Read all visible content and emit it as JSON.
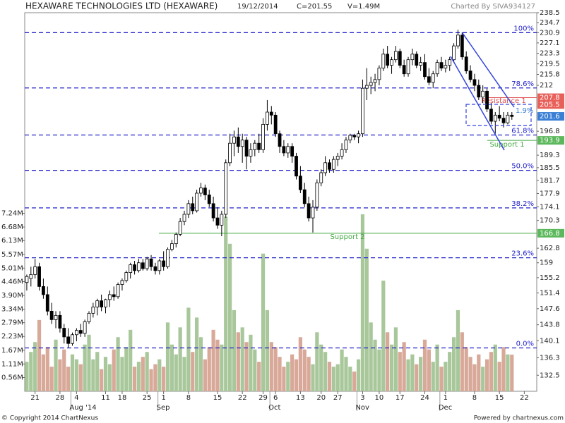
{
  "chart_data": {
    "type": "candlestick",
    "title": "HEXAWARE TECHNOLOGIES LTD (HEXAWARE)",
    "date": "19/12/2014",
    "close_label": "C=201.55",
    "volume_label": "V=1.49M",
    "credit": "Charted By SIVA934127",
    "open": [
      154,
      155,
      156,
      158,
      153,
      151,
      147,
      145,
      146,
      143,
      141,
      139.5,
      141.5,
      142.5,
      141.8,
      144.5,
      146.5,
      148,
      149.5,
      148,
      149.8,
      151,
      150.5,
      153.5,
      154.5,
      156.5,
      158.5,
      157,
      159,
      157.5,
      160,
      158,
      157,
      159.5,
      158,
      162.5,
      164,
      166.5,
      170,
      172,
      175,
      173,
      178,
      179.5,
      177.5,
      175,
      171,
      169,
      172,
      187,
      193,
      195,
      192,
      194,
      189,
      191,
      193,
      191,
      199,
      203,
      202,
      196,
      192,
      190,
      192,
      189,
      183,
      179,
      175,
      171,
      174,
      181,
      184,
      187,
      185,
      188,
      189,
      191,
      194,
      195.5,
      195,
      196,
      211,
      212,
      213,
      214,
      218,
      223,
      219,
      221,
      224,
      219,
      216,
      221,
      223,
      219,
      220,
      215,
      213,
      216,
      220,
      218,
      219,
      221,
      226,
      230,
      222,
      217,
      214,
      212,
      208,
      210,
      204,
      200,
      202,
      201,
      199.5,
      202
    ],
    "high": [
      156,
      158,
      160,
      159,
      155,
      153,
      149,
      147,
      147,
      144,
      143,
      142,
      143,
      144,
      145,
      147,
      149,
      150,
      151,
      150,
      152,
      153,
      154,
      155,
      157,
      159,
      159.5,
      160,
      160,
      160.5,
      161,
      159,
      160,
      162,
      163,
      165,
      167,
      171,
      173,
      176,
      177,
      179,
      181,
      180.5,
      179,
      177,
      174,
      173,
      188,
      196,
      197,
      198,
      196,
      195,
      193,
      194,
      196,
      201,
      207,
      205,
      203,
      197,
      194,
      193,
      193,
      190,
      186,
      181,
      177,
      176,
      182,
      185,
      189,
      188,
      189,
      190,
      193,
      195,
      196,
      196,
      197,
      214,
      218,
      215,
      216,
      219,
      225,
      226,
      222,
      226,
      225,
      221,
      222,
      225,
      224,
      222,
      223,
      218,
      217,
      221,
      222,
      221,
      222,
      227,
      232,
      231,
      224,
      219,
      216,
      214,
      212,
      211,
      206,
      203,
      205,
      203,
      203,
      203
    ],
    "low": [
      152,
      153,
      155,
      152,
      150,
      146,
      144,
      143,
      142,
      139.5,
      138.5,
      139,
      140,
      141,
      141,
      144,
      145.5,
      146,
      147,
      146.5,
      148,
      149.5,
      150,
      152,
      154,
      155,
      156,
      156.5,
      157,
      157,
      157,
      156,
      156,
      157,
      157.5,
      162,
      163,
      166,
      169,
      171,
      172,
      172.5,
      177,
      176,
      174,
      170,
      168,
      166,
      171,
      186,
      189,
      190,
      187,
      185,
      187,
      189,
      190,
      190,
      197,
      199,
      195,
      190,
      189,
      188.5,
      187,
      182,
      178,
      174,
      170,
      167,
      173,
      180,
      183,
      184,
      184,
      186,
      188,
      190,
      193,
      194,
      193,
      195,
      207,
      209,
      210,
      212,
      217,
      218,
      216,
      220,
      218,
      215,
      215,
      219,
      218,
      217,
      214,
      212,
      211,
      215,
      217,
      216.5,
      217,
      220,
      225,
      221,
      216,
      213,
      210,
      207,
      206,
      203,
      199,
      196,
      200,
      198,
      199,
      200.5
    ],
    "close": [
      155.5,
      156,
      158,
      153,
      151,
      147,
      145,
      146,
      143,
      141,
      139.5,
      141.5,
      142.5,
      141.8,
      144.5,
      146.5,
      148,
      149.5,
      148,
      149.8,
      151,
      150.5,
      153.5,
      154.5,
      156.5,
      158.5,
      157,
      159,
      157.5,
      160,
      158,
      157,
      159.5,
      158,
      162.5,
      164,
      166.5,
      170,
      172,
      175,
      173,
      178,
      179.5,
      177.5,
      175,
      171,
      169,
      172,
      187,
      193,
      195,
      192,
      194,
      189,
      191,
      193,
      191,
      199,
      203,
      202,
      196,
      192,
      190,
      192,
      189,
      183,
      179,
      175,
      171,
      174,
      181,
      184,
      187,
      185,
      188,
      189,
      191,
      194,
      195.5,
      195,
      196,
      211,
      212,
      213,
      214,
      218,
      223,
      219,
      221,
      224,
      219,
      216,
      221,
      223,
      219,
      220,
      215,
      213,
      216,
      220,
      218,
      219,
      221,
      226,
      230,
      222,
      217,
      214,
      212,
      208,
      210,
      204,
      200,
      202,
      201,
      199.5,
      202,
      201.55
    ],
    "volume": [
      1.2,
      1.6,
      2.0,
      2.9,
      1.5,
      1.8,
      1.0,
      2.1,
      1.3,
      1.7,
      1.0,
      1.5,
      1.3,
      1.1,
      1.9,
      2.3,
      1.3,
      1.6,
      0.9,
      1.4,
      1.1,
      1.7,
      2.2,
      1.4,
      1.8,
      2.5,
      1.0,
      1.2,
      1.4,
      1.6,
      0.9,
      1.1,
      1.3,
      1.0,
      2.8,
      1.9,
      1.5,
      2.6,
      1.4,
      3.4,
      1.6,
      3.0,
      2.2,
      1.3,
      1.8,
      2.5,
      2.1,
      1.9,
      7.1,
      6.0,
      3.3,
      2.4,
      2.6,
      2.0,
      2.3,
      1.7,
      1.2,
      5.6,
      3.3,
      2.0,
      1.8,
      1.4,
      1.0,
      1.2,
      1.5,
      1.3,
      2.2,
      1.7,
      1.4,
      1.1,
      2.4,
      1.9,
      1.6,
      1.2,
      1.0,
      1.1,
      1.7,
      1.4,
      1.0,
      0.8,
      1.3,
      7.2,
      5.8,
      2.8,
      2.1,
      1.7,
      4.5,
      2.4,
      1.9,
      2.6,
      1.6,
      2.0,
      1.3,
      1.5,
      1.1,
      1.4,
      2.1,
      1.7,
      1.2,
      1.9,
      1.0,
      1.2,
      1.6,
      2.2,
      3.3,
      2.4,
      1.8,
      1.4,
      1.1,
      1.5,
      1.0,
      1.3,
      1.6,
      1.9,
      1.2,
      1.8,
      1.5,
      1.49
    ],
    "up_color": "#ffffff",
    "down_color": "#000000",
    "volume_up_color": "#a8c79a",
    "volume_down_color": "#d8a898",
    "xlim": [
      -0.5,
      123
    ],
    "xticks": [
      {
        "value": 2,
        "label": "21"
      },
      {
        "value": 8,
        "label": "28"
      },
      {
        "value": 12,
        "label": "4"
      },
      {
        "value": 19,
        "label": "11"
      },
      {
        "value": 23,
        "label": "18"
      },
      {
        "value": 29,
        "label": "25"
      },
      {
        "value": 33,
        "label": "1"
      },
      {
        "value": 39,
        "label": "8"
      },
      {
        "value": 46,
        "label": "15"
      },
      {
        "value": 52,
        "label": "22"
      },
      {
        "value": 57,
        "label": "29"
      },
      {
        "value": 60,
        "label": "6"
      },
      {
        "value": 66,
        "label": "13"
      },
      {
        "value": 71,
        "label": "20"
      },
      {
        "value": 75,
        "label": "27"
      },
      {
        "value": 81,
        "label": "3"
      },
      {
        "value": 85,
        "label": "10"
      },
      {
        "value": 90,
        "label": "17"
      },
      {
        "value": 96,
        "label": "24"
      },
      {
        "value": 101,
        "label": "1"
      },
      {
        "value": 108,
        "label": "8"
      },
      {
        "value": 114,
        "label": "15"
      },
      {
        "value": 120,
        "label": "22"
      }
    ],
    "month_ticks": [
      {
        "value": 12,
        "label": "Aug '14"
      },
      {
        "value": 33,
        "label": "Sep"
      },
      {
        "value": 60,
        "label": "Oct"
      },
      {
        "value": 81,
        "label": "Nov"
      },
      {
        "value": 101,
        "label": "Dec"
      }
    ],
    "ylim": [
      129.1,
      238.5
    ],
    "yscale": "log",
    "yticks": [
      238.5,
      234.7,
      230.9,
      227.1,
      223.3,
      219.5,
      215.8,
      212,
      196.8,
      189.3,
      185.5,
      181.7,
      177.9,
      174.1,
      170.3,
      162.8,
      159,
      155.2,
      151.4,
      147.6,
      143.8,
      140.1,
      136.3,
      132.5
    ],
    "y2lim": [
      0,
      15.4
    ],
    "y2ticks": [
      {
        "value": 0.56,
        "label": "0.56M"
      },
      {
        "value": 1.11,
        "label": "1.11M"
      },
      {
        "value": 1.67,
        "label": "1.67M"
      },
      {
        "value": 2.23,
        "label": "2.23M"
      },
      {
        "value": 2.79,
        "label": "2.79M"
      },
      {
        "value": 3.34,
        "label": "3.34M"
      },
      {
        "value": 3.9,
        "label": "3.90M"
      },
      {
        "value": 4.46,
        "label": "4.46M"
      },
      {
        "value": 5.01,
        "label": "5.01M"
      },
      {
        "value": 5.57,
        "label": "5.57M"
      },
      {
        "value": 6.13,
        "label": "6.13M"
      },
      {
        "value": 6.68,
        "label": "6.68M"
      },
      {
        "value": 7.24,
        "label": "7.24M"
      }
    ],
    "fib_color": "#2222cc",
    "fib_levels": [
      {
        "value": 230.9,
        "label": "100%"
      },
      {
        "value": 211.1,
        "label": "78.6%"
      },
      {
        "value": 195.6,
        "label": "61.8%"
      },
      {
        "value": 184.7,
        "label": "50.0%"
      },
      {
        "value": 173.8,
        "label": "38.2%"
      },
      {
        "value": 160.3,
        "label": "23.6%"
      },
      {
        "value": 138.5,
        "label": "0.0%"
      }
    ],
    "levels": [
      {
        "name": "Resistance 1",
        "value": 207.8,
        "color": "#e05050"
      },
      {
        "name": "Support 1",
        "value": 193.9,
        "color": "#44aa44"
      },
      {
        "name": "Support 2",
        "value": 166.8,
        "color": "#44aa44"
      }
    ],
    "price_markers": [
      {
        "value": 207.8,
        "color": "#e8605a"
      },
      {
        "value": 205.5,
        "color": "#e8605a"
      },
      {
        "value": 201.6,
        "color": "#3a7fd5"
      },
      {
        "value": 193.9,
        "color": "#5cb85c"
      },
      {
        "value": 166.8,
        "color": "#5cb85c"
      }
    ],
    "annotation": "1.9%"
  },
  "footer": {
    "copyright": "© Copyright 2014 ChartNexus",
    "powered": "Powered by chartnexus.com"
  }
}
